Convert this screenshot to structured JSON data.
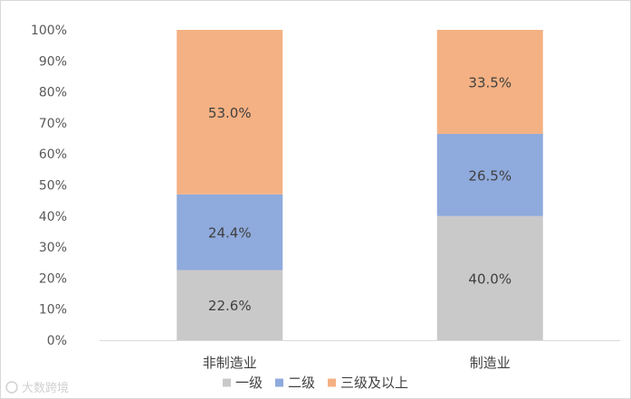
{
  "chart_data": {
    "type": "bar",
    "stacked": true,
    "categories": [
      "非制造业",
      "制造业"
    ],
    "series": [
      {
        "name": "一级",
        "values": [
          22.6,
          40.0
        ],
        "color": "#c9c9c9"
      },
      {
        "name": "二级",
        "values": [
          24.4,
          26.5
        ],
        "color": "#8faadc"
      },
      {
        "name": "三级及以上",
        "values": [
          53.0,
          33.5
        ],
        "color": "#f4b183"
      }
    ],
    "data_labels": [
      [
        "22.6%",
        "40.0%"
      ],
      [
        "24.4%",
        "26.5%"
      ],
      [
        "53.0%",
        "33.5%"
      ]
    ],
    "title": "",
    "xlabel": "",
    "ylabel": "",
    "ylim": [
      0,
      100
    ],
    "yticks": [
      "0%",
      "10%",
      "20%",
      "30%",
      "40%",
      "50%",
      "60%",
      "70%",
      "80%",
      "90%",
      "100%"
    ],
    "grid": false,
    "legend_position": "bottom"
  },
  "watermark": {
    "text": "大数跨境",
    "icon": "brand-logo-icon"
  }
}
